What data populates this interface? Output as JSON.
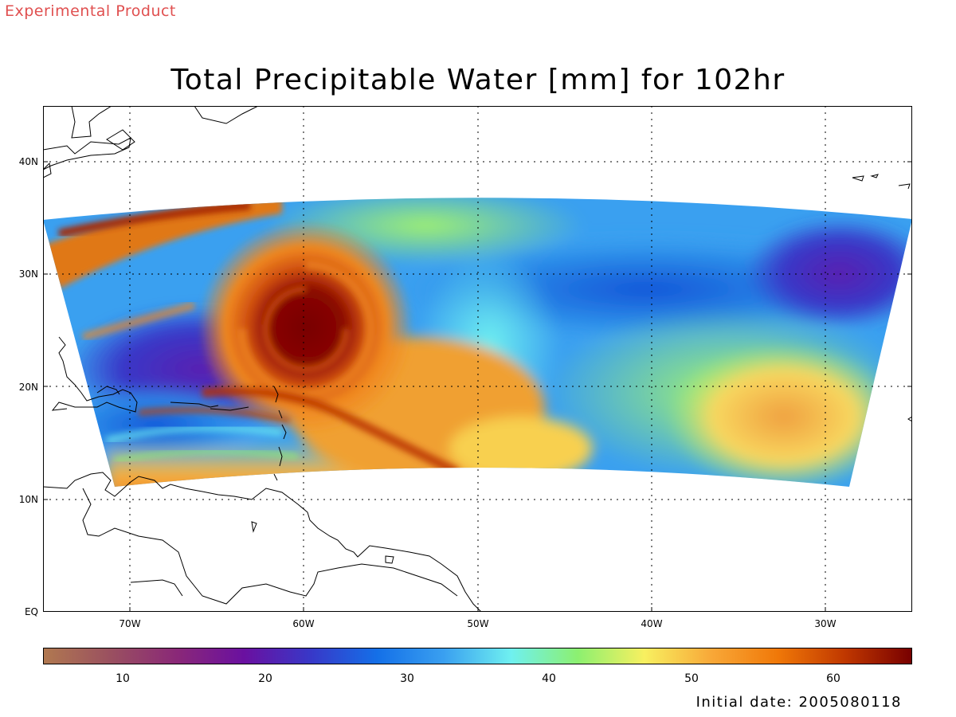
{
  "watermark": {
    "text": "Experimental Product",
    "color": "#e05050"
  },
  "title": "Total Precipitable Water [mm] for 102hr",
  "map": {
    "lon_range": [
      -75,
      -25
    ],
    "lat_range": [
      0,
      45
    ],
    "lat_ticks": [
      {
        "value": 40,
        "label": "40N"
      },
      {
        "value": 30,
        "label": "30N"
      },
      {
        "value": 20,
        "label": "20N"
      },
      {
        "value": 10,
        "label": "10N"
      },
      {
        "value": 0,
        "label": "EQ"
      }
    ],
    "lon_ticks": [
      {
        "value": -70,
        "label": "70W"
      },
      {
        "value": -60,
        "label": "60W"
      },
      {
        "value": -50,
        "label": "50W"
      },
      {
        "value": -40,
        "label": "40W"
      },
      {
        "value": -30,
        "label": "30W"
      }
    ],
    "grid": "dotted"
  },
  "colorbar": {
    "range": [
      5,
      65
    ],
    "ticks": [
      {
        "value": 10,
        "label": "10"
      },
      {
        "value": 20,
        "label": "20"
      },
      {
        "value": 30,
        "label": "30"
      },
      {
        "value": 40,
        "label": "40"
      },
      {
        "value": 50,
        "label": "50"
      },
      {
        "value": 60,
        "label": "60"
      }
    ],
    "stops": [
      "#b07850",
      "#9a5060",
      "#8a2878",
      "#6a10a0",
      "#3838c8",
      "#1470e8",
      "#3aa0f0",
      "#6ff0f0",
      "#8cf070",
      "#f8f060",
      "#f8a838",
      "#f07808",
      "#c03800",
      "#780000"
    ]
  },
  "init_date": "Initial date: 2005080118"
}
